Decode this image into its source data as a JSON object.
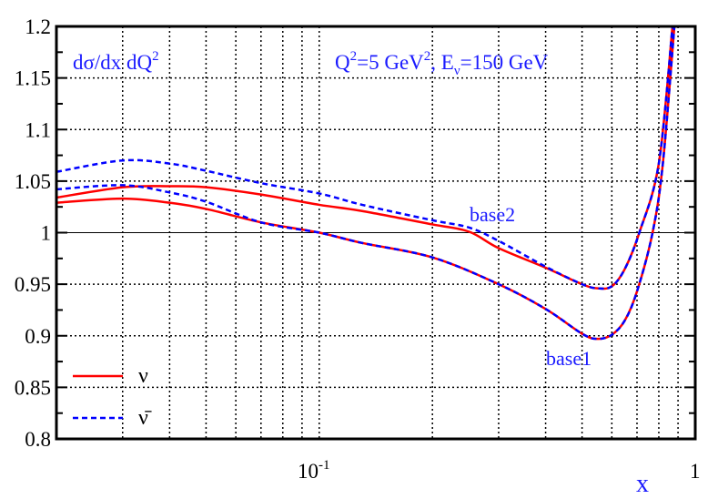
{
  "chart_data": {
    "type": "line",
    "title": "",
    "xlabel": "x",
    "ylabel": "",
    "x_scale": "log",
    "xlim": [
      0.02,
      1
    ],
    "ylim": [
      0.8,
      1.2
    ],
    "grid": true,
    "legend_placement": "bottom-left",
    "y_ticks": [
      "0.8",
      "0.85",
      "0.9",
      "0.95",
      "1",
      "1.05",
      "1.1",
      "1.15",
      "1.2"
    ],
    "x_tick_labels": {
      "base": "10",
      "exp": "-1",
      "one": "1"
    },
    "annotations": {
      "quantity": "dσ/dx dQ",
      "quantity_sup": "2",
      "kin_q": "Q",
      "kin_sup1": "2",
      "kin_mid": "=5 GeV",
      "kin_sup2": "2",
      "kin_e": ", E",
      "kin_sub": "ν",
      "kin_end": "=150 GeV",
      "base2": "base2",
      "base1": "base1"
    },
    "legend": [
      {
        "label": "ν",
        "color": "#ff0000",
        "style": "solid"
      },
      {
        "label": "ν̄",
        "color": "#0000ff",
        "style": "dashed"
      }
    ],
    "series": [
      {
        "group": "base2",
        "particle": "ν",
        "color": "#ff0000",
        "style": "solid",
        "x": [
          0.02,
          0.03,
          0.04,
          0.05,
          0.07,
          0.1,
          0.13,
          0.2,
          0.25,
          0.3,
          0.4,
          0.5,
          0.55,
          0.6,
          0.65,
          0.71,
          0.8,
          0.87
        ],
        "y": [
          1.034,
          1.044,
          1.045,
          1.044,
          1.037,
          1.027,
          1.021,
          1.008,
          1.001,
          0.985,
          0.966,
          0.95,
          0.946,
          0.948,
          0.965,
          1.0,
          1.067,
          1.2
        ]
      },
      {
        "group": "base1",
        "particle": "ν",
        "color": "#ff0000",
        "style": "solid",
        "x": [
          0.02,
          0.03,
          0.04,
          0.05,
          0.07,
          0.1,
          0.13,
          0.2,
          0.3,
          0.4,
          0.5,
          0.55,
          0.6,
          0.65,
          0.7,
          0.77,
          0.82,
          0.88
        ],
        "y": [
          1.029,
          1.033,
          1.029,
          1.023,
          1.01,
          1.0,
          0.99,
          0.976,
          0.95,
          0.926,
          0.902,
          0.897,
          0.901,
          0.915,
          0.943,
          1.0,
          1.067,
          1.2
        ]
      },
      {
        "group": "base2",
        "particle": "ν̄",
        "color": "#0000ff",
        "style": "dashed",
        "x": [
          0.02,
          0.03,
          0.04,
          0.05,
          0.07,
          0.1,
          0.13,
          0.2,
          0.25,
          0.3,
          0.4,
          0.5,
          0.55,
          0.6,
          0.65,
          0.71,
          0.8,
          0.87
        ],
        "y": [
          1.059,
          1.07,
          1.067,
          1.06,
          1.048,
          1.038,
          1.027,
          1.012,
          1.005,
          0.992,
          0.967,
          0.95,
          0.946,
          0.948,
          0.965,
          1.0,
          1.067,
          1.2
        ]
      },
      {
        "group": "base1",
        "particle": "ν̄",
        "color": "#0000ff",
        "style": "dashed",
        "x": [
          0.02,
          0.03,
          0.04,
          0.05,
          0.07,
          0.1,
          0.13,
          0.2,
          0.3,
          0.4,
          0.5,
          0.55,
          0.6,
          0.65,
          0.7,
          0.77,
          0.82,
          0.88
        ],
        "y": [
          1.042,
          1.046,
          1.039,
          1.03,
          1.01,
          1.0,
          0.99,
          0.976,
          0.95,
          0.926,
          0.902,
          0.897,
          0.901,
          0.915,
          0.943,
          1.0,
          1.067,
          1.2
        ]
      }
    ]
  }
}
